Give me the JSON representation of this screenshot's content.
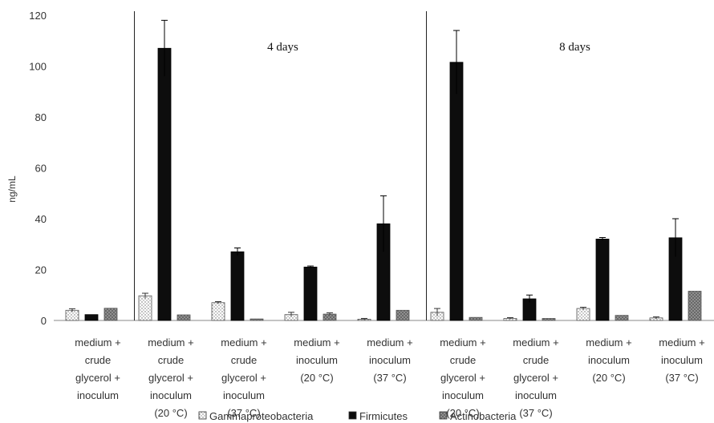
{
  "chart_data": {
    "type": "bar",
    "title": "",
    "xlabel": "",
    "ylabel": "ng/mL",
    "ylim": [
      0,
      120
    ],
    "yticks": [
      0,
      20,
      40,
      60,
      80,
      100,
      120
    ],
    "grid": false,
    "legend_position": "bottom",
    "period_labels": [
      {
        "label": "4 days",
        "spans": [
          1,
          4
        ]
      },
      {
        "label": "8 days",
        "spans": [
          5,
          8
        ]
      }
    ],
    "categories": [
      [
        "medium +",
        "crude",
        "glycerol +",
        "inoculum"
      ],
      [
        "medium +",
        "crude",
        "glycerol +",
        "inoculum",
        "(20 °C)"
      ],
      [
        "medium +",
        "crude",
        "glycerol +",
        "inoculum",
        "(37 °C)"
      ],
      [
        "medium +",
        "inoculum",
        "(20 °C)"
      ],
      [
        "medium +",
        "inoculum",
        "(37 °C)"
      ],
      [
        "medium +",
        "crude",
        "glycerol +",
        "inoculum",
        "(20 °C)"
      ],
      [
        "medium +",
        "crude",
        "glycerol +",
        "inoculum",
        "(37 °C)"
      ],
      [
        "medium +",
        "inoculum",
        "(20 °C)"
      ],
      [
        "medium +",
        "inoculum",
        "(37 °C)"
      ]
    ],
    "series": [
      {
        "name": "Gammaproteobacteria",
        "pattern": "dotted",
        "color": "#ffffff",
        "values": [
          4,
          9.7,
          7,
          2.3,
          0.5,
          3.2,
          0.8,
          4.7,
          1
        ],
        "errors": [
          0.6,
          1,
          0.4,
          0.9,
          0.3,
          1.5,
          0.3,
          0.5,
          0.4
        ]
      },
      {
        "name": "Firmicutes",
        "pattern": "solid",
        "color": "#0d0d0d",
        "values": [
          2.3,
          107,
          27,
          21,
          38,
          101.5,
          8.5,
          32,
          32.5
        ],
        "errors": [
          0,
          11,
          1.5,
          0.4,
          11,
          12.5,
          1.5,
          0.6,
          7.5
        ]
      },
      {
        "name": "Actinobacteria",
        "pattern": "crosshatch",
        "color": "#8c8c8c",
        "values": [
          4.8,
          2.2,
          0.6,
          2.5,
          4,
          1.2,
          0.8,
          2,
          11.5
        ],
        "errors": [
          0,
          0,
          0,
          0.5,
          0,
          0,
          0,
          0,
          0
        ]
      }
    ]
  }
}
